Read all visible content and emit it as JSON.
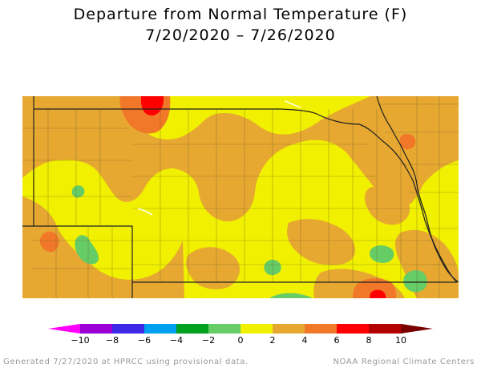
{
  "title_line1": "Departure from Normal Temperature (F)",
  "title_line2": "7/20/2020 – 7/26/2020",
  "legend": {
    "labels": [
      "−10",
      "−8",
      "−6",
      "−4",
      "−2",
      "0",
      "2",
      "4",
      "6",
      "8",
      "10"
    ],
    "colors": [
      "#ff00ff",
      "#9a00d6",
      "#3c28e6",
      "#00a0f0",
      "#00a020",
      "#66cc66",
      "#f0f000",
      "#e6a830",
      "#f07828",
      "#ff0000",
      "#b40000",
      "#7a0000"
    ]
  },
  "colors": {
    "warm_0_2": "#f0f000",
    "warm_2_4": "#e6a830",
    "warm_4_6": "#f07828",
    "warm_6_8": "#ff0000",
    "warm_8_10": "#b40000",
    "cool_0_m2": "#66cc66"
  },
  "footer": {
    "left": "Generated 7/27/2020 at HPRCC using provisional data.",
    "right": "NOAA Regional Climate Centers"
  }
}
